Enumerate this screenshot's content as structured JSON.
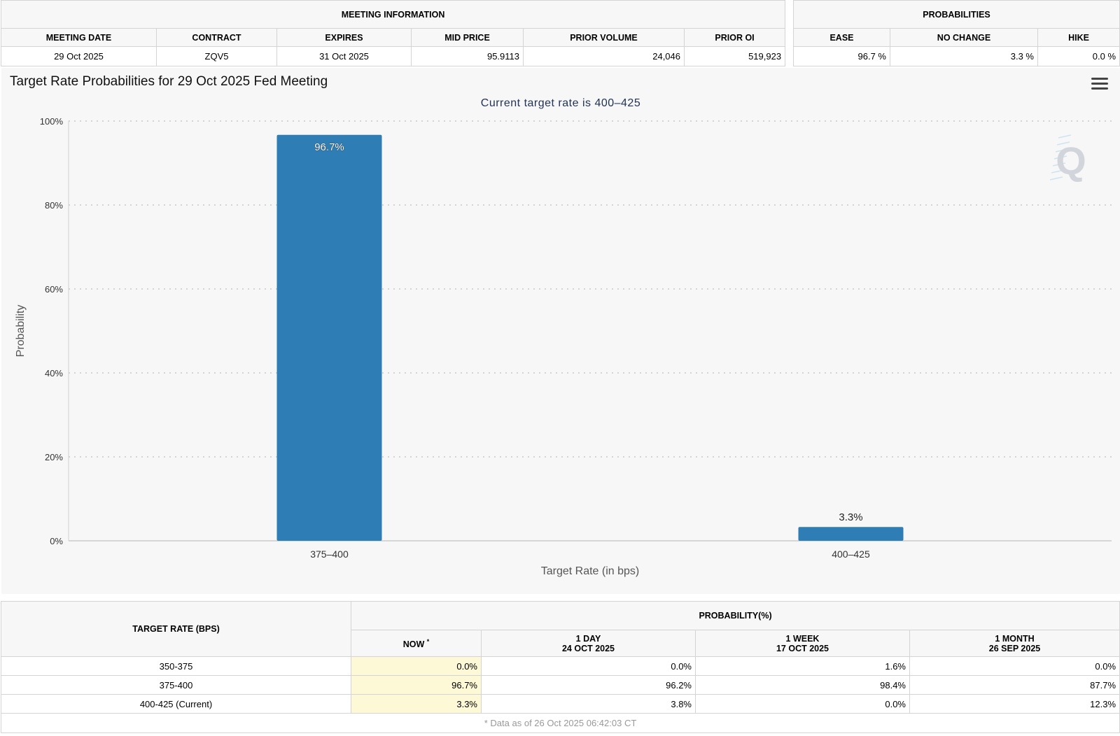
{
  "meeting_info": {
    "title": "MEETING INFORMATION",
    "headers": [
      "MEETING DATE",
      "CONTRACT",
      "EXPIRES",
      "MID PRICE",
      "PRIOR VOLUME",
      "PRIOR OI"
    ],
    "values": [
      "29 Oct 2025",
      "ZQV5",
      "31 Oct 2025",
      "95.9113",
      "24,046",
      "519,923"
    ]
  },
  "probabilities": {
    "title": "PROBABILITIES",
    "headers": [
      "EASE",
      "NO CHANGE",
      "HIKE"
    ],
    "values": [
      "96.7 %",
      "3.3 %",
      "0.0 %"
    ]
  },
  "chart": {
    "menu_icon": "hamburger-menu-icon",
    "watermark_icon": "quikstrike-q-logo",
    "bar_color": "#2e7eb5"
  },
  "chart_data": {
    "type": "bar",
    "title": "Target Rate Probabilities for 29 Oct 2025 Fed Meeting",
    "subtitle": "Current target rate is 400–425",
    "categories": [
      "375–400",
      "400–425"
    ],
    "values": [
      96.7,
      3.3
    ],
    "data_labels": [
      "96.7%",
      "3.3%"
    ],
    "xlabel": "Target Rate (in bps)",
    "ylabel": "Probability",
    "ylim": [
      0,
      100
    ],
    "yticks": [
      0,
      20,
      40,
      60,
      80,
      100
    ],
    "ytick_labels": [
      "0%",
      "20%",
      "40%",
      "60%",
      "80%",
      "100%"
    ],
    "grid": true
  },
  "rates_table": {
    "rate_header": "TARGET RATE (BPS)",
    "prob_header": "PROBABILITY(%)",
    "now_header": "NOW",
    "now_mark": "*",
    "period_headers": [
      {
        "label": "1 DAY",
        "date": "24 OCT 2025"
      },
      {
        "label": "1 WEEK",
        "date": "17 OCT 2025"
      },
      {
        "label": "1 MONTH",
        "date": "26 SEP 2025"
      }
    ],
    "rows": [
      {
        "rate": "350-375",
        "now": "0.0%",
        "day": "0.0%",
        "week": "1.6%",
        "month": "0.0%"
      },
      {
        "rate": "375-400",
        "now": "96.7%",
        "day": "96.2%",
        "week": "98.4%",
        "month": "87.7%"
      },
      {
        "rate": "400-425 (Current)",
        "now": "3.3%",
        "day": "3.8%",
        "week": "0.0%",
        "month": "12.3%"
      }
    ],
    "footnote": "* Data as of 26 Oct 2025 06:42:03 CT"
  }
}
